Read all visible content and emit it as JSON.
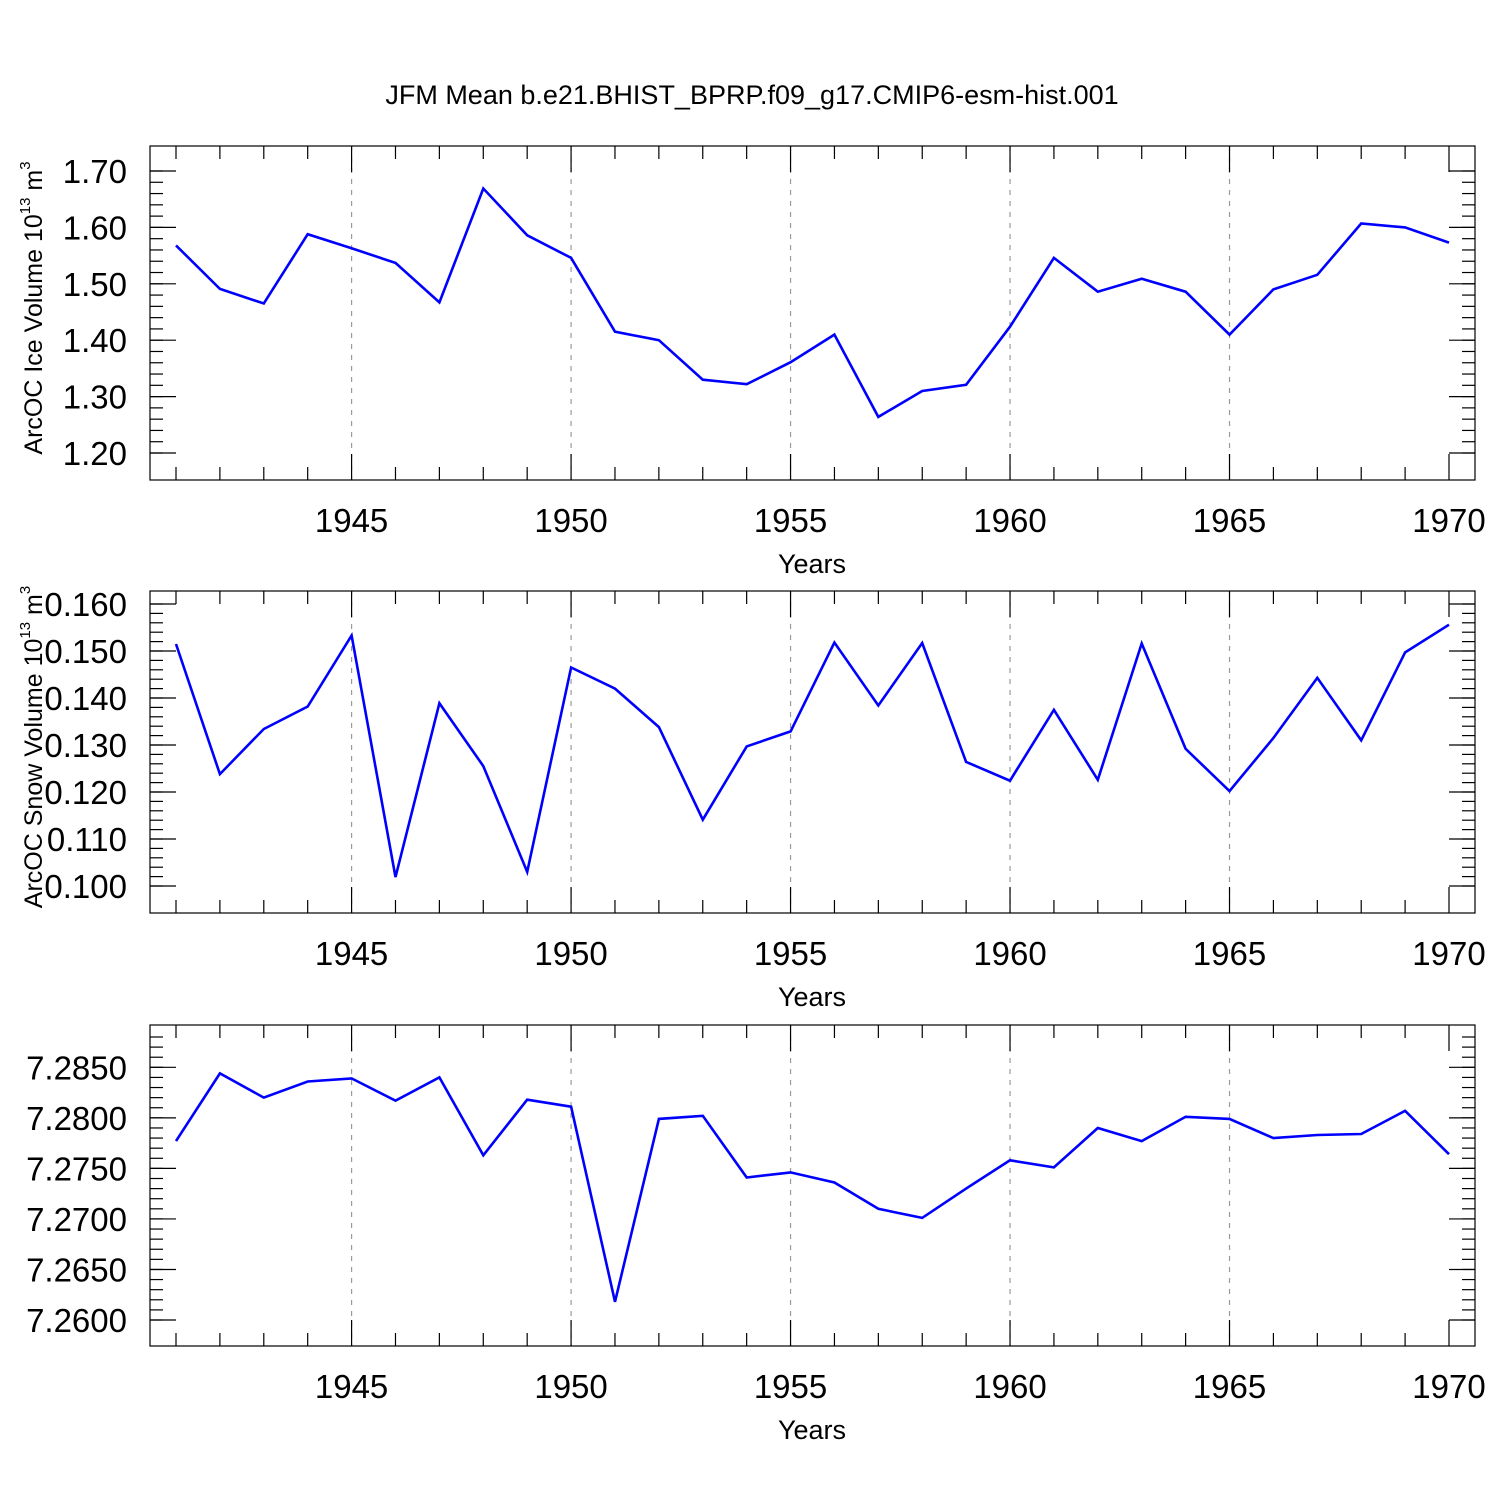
{
  "title": "JFM Mean b.e21.BHIST_BPRP.f09_g17.CMIP6-esm-hist.001",
  "colors": {
    "series": "#0000ff",
    "grid": "#9a9a9a",
    "axis": "#000000"
  },
  "chart_data": [
    {
      "type": "line",
      "id": "ice",
      "xlabel": "Years",
      "ylabel_main": "ArcOC Ice Volume 10",
      "ylabel_exp": "13",
      "ylabel_unit": " m",
      "ylabel_unit_exp": "3",
      "xlim": [
        1941,
        1970
      ],
      "ylim": [
        1.2,
        1.7
      ],
      "x_ticks": [
        1945,
        1950,
        1955,
        1960,
        1965,
        1970
      ],
      "x_tick_labels": [
        "1945",
        "1950",
        "1955",
        "1960",
        "1965",
        "1970"
      ],
      "y_ticks": [
        1.2,
        1.3,
        1.4,
        1.5,
        1.6,
        1.7
      ],
      "y_tick_labels": [
        "1.20",
        "1.30",
        "1.40",
        "1.50",
        "1.60",
        "1.70"
      ],
      "y_minor_step": 0.02,
      "grid": "vertical-dashed",
      "x": [
        1941,
        1942,
        1943,
        1944,
        1945,
        1946,
        1947,
        1948,
        1949,
        1950,
        1951,
        1952,
        1953,
        1954,
        1955,
        1956,
        1957,
        1958,
        1959,
        1960,
        1961,
        1962,
        1963,
        1964,
        1965,
        1966,
        1967,
        1968,
        1969,
        1970
      ],
      "values": [
        1.568,
        1.491,
        1.465,
        1.588,
        1.563,
        1.537,
        1.467,
        1.669,
        1.586,
        1.546,
        1.415,
        1.4,
        1.33,
        1.322,
        1.361,
        1.41,
        1.264,
        1.31,
        1.321,
        1.424,
        1.546,
        1.486,
        1.509,
        1.486,
        1.41,
        1.49,
        1.516,
        1.607,
        1.6,
        1.573
      ]
    },
    {
      "type": "line",
      "id": "snow",
      "xlabel": "Years",
      "ylabel_main": "ArcOC Snow Volume 10",
      "ylabel_exp": "13",
      "ylabel_unit": " m",
      "ylabel_unit_exp": "3",
      "xlim": [
        1941,
        1970
      ],
      "ylim": [
        0.1,
        0.16
      ],
      "x_ticks": [
        1945,
        1950,
        1955,
        1960,
        1965,
        1970
      ],
      "x_tick_labels": [
        "1945",
        "1950",
        "1955",
        "1960",
        "1965",
        "1970"
      ],
      "y_ticks": [
        0.1,
        0.11,
        0.12,
        0.13,
        0.14,
        0.15,
        0.16
      ],
      "y_tick_labels": [
        "0.100",
        "0.110",
        "0.120",
        "0.130",
        "0.140",
        "0.150",
        "0.160"
      ],
      "y_minor_step": 0.002,
      "grid": "vertical-dashed",
      "x": [
        1941,
        1942,
        1943,
        1944,
        1945,
        1946,
        1947,
        1948,
        1949,
        1950,
        1951,
        1952,
        1953,
        1954,
        1955,
        1956,
        1957,
        1958,
        1959,
        1960,
        1961,
        1962,
        1963,
        1964,
        1965,
        1966,
        1967,
        1968,
        1969,
        1970
      ],
      "values": [
        0.1515,
        0.1238,
        0.1334,
        0.1382,
        0.1533,
        0.1019,
        0.1389,
        0.1255,
        0.103,
        0.1465,
        0.142,
        0.1338,
        0.1141,
        0.1297,
        0.1329,
        0.1518,
        0.1384,
        0.1517,
        0.1264,
        0.1224,
        0.1375,
        0.1226,
        0.1516,
        0.1292,
        0.1202,
        0.1315,
        0.1443,
        0.131,
        0.1497,
        0.1556
      ]
    },
    {
      "type": "line",
      "id": "third",
      "xlabel": "Years",
      "ylabel_main": "",
      "xlim": [
        1941,
        1970
      ],
      "ylim": [
        7.26,
        7.288
      ],
      "x_ticks": [
        1945,
        1950,
        1955,
        1960,
        1965,
        1970
      ],
      "x_tick_labels": [
        "1945",
        "1950",
        "1955",
        "1960",
        "1965",
        "1970"
      ],
      "y_ticks": [
        7.26,
        7.265,
        7.27,
        7.275,
        7.28,
        7.285
      ],
      "y_tick_labels": [
        "7.2600",
        "7.2650",
        "7.2700",
        "7.2750",
        "7.2800",
        "7.2850"
      ],
      "y_minor_step": 0.001,
      "grid": "vertical-dashed",
      "x": [
        1941,
        1942,
        1943,
        1944,
        1945,
        1946,
        1947,
        1948,
        1949,
        1950,
        1951,
        1952,
        1953,
        1954,
        1955,
        1956,
        1957,
        1958,
        1959,
        1960,
        1961,
        1962,
        1963,
        1964,
        1965,
        1966,
        1967,
        1968,
        1969,
        1970
      ],
      "values": [
        7.2777,
        7.2844,
        7.282,
        7.2836,
        7.2839,
        7.2817,
        7.284,
        7.2763,
        7.2818,
        7.2811,
        7.2618,
        7.2799,
        7.2802,
        7.2741,
        7.2746,
        7.2736,
        7.271,
        7.2701,
        7.273,
        7.2758,
        7.2751,
        7.279,
        7.2777,
        7.2801,
        7.2799,
        7.278,
        7.2783,
        7.2784,
        7.2807,
        7.2764
      ]
    }
  ]
}
